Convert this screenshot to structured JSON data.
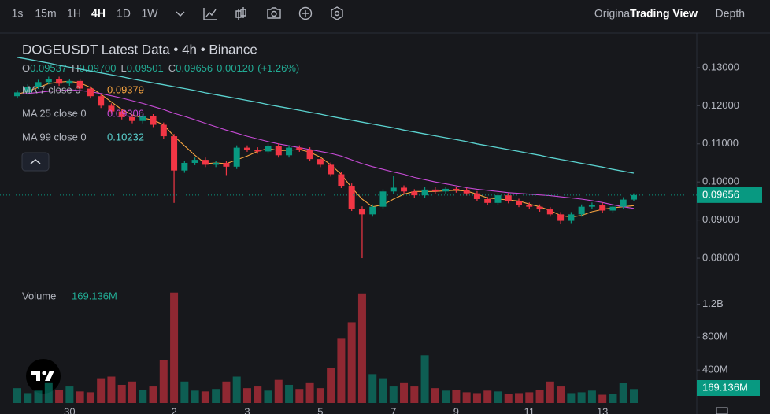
{
  "toolbar": {
    "intervals": [
      "1s",
      "15m",
      "1H",
      "4H",
      "1D",
      "1W"
    ],
    "active_interval": 3,
    "views": [
      "Original",
      "Trading View",
      "Depth"
    ],
    "active_view": 1
  },
  "legend": {
    "title": "DOGEUSDT Latest Data • 4h • Binance",
    "ohlc": [
      {
        "key": "O",
        "value": "0.09537"
      },
      {
        "key": "H",
        "value": "0.09700"
      },
      {
        "key": "L",
        "value": "0.09501"
      },
      {
        "key": "C",
        "value": "0.09656"
      }
    ],
    "change": "0.00120",
    "change_pct": "(+1.26%)",
    "volume_title": "Volume",
    "volume_value": "169.136M"
  },
  "chart_data": {
    "type": "candlestick",
    "up_color": "#089981",
    "down_color": "#f23645",
    "categories": [
      null,
      null,
      null,
      null,
      null,
      "30",
      null,
      null,
      null,
      null,
      null,
      null,
      null,
      null,
      null,
      "2",
      null,
      null,
      null,
      null,
      null,
      null,
      "3",
      null,
      null,
      null,
      null,
      null,
      null,
      "5",
      null,
      null,
      null,
      null,
      null,
      null,
      "7",
      null,
      null,
      null,
      null,
      null,
      "9",
      null,
      null,
      null,
      null,
      null,
      null,
      "11",
      null,
      null,
      null,
      null,
      null,
      null,
      "13",
      null,
      null,
      null
    ],
    "candles": {
      "open": [
        0.1225,
        0.1235,
        0.125,
        0.1262,
        0.127,
        0.1258,
        0.1265,
        0.1245,
        0.1225,
        0.12,
        0.1185,
        0.117,
        0.116,
        0.1172,
        0.115,
        0.112,
        0.103,
        0.105,
        0.1058,
        0.1045,
        0.105,
        0.104,
        0.109,
        0.1085,
        0.108,
        0.1095,
        0.107,
        0.109,
        0.1085,
        0.106,
        0.1045,
        0.102,
        0.099,
        0.093,
        0.0915,
        0.0935,
        0.0975,
        0.0985,
        0.0975,
        0.0965,
        0.098,
        0.0975,
        0.0982,
        0.0978,
        0.097,
        0.0955,
        0.0945,
        0.0965,
        0.095,
        0.094,
        0.0935,
        0.0928,
        0.0915,
        0.0898,
        0.0915,
        0.0935,
        0.094,
        0.0925,
        0.0935,
        0.09537
      ],
      "high": [
        0.1241,
        0.1256,
        0.1268,
        0.1276,
        0.1276,
        0.1271,
        0.1271,
        0.1251,
        0.1231,
        0.1206,
        0.1191,
        0.1176,
        0.1178,
        0.1178,
        0.1156,
        0.1126,
        0.1056,
        0.1064,
        0.1064,
        0.1056,
        0.1056,
        0.1096,
        0.1096,
        0.1091,
        0.1101,
        0.1101,
        0.1096,
        0.1096,
        0.1091,
        0.1066,
        0.1051,
        0.1026,
        0.0996,
        0.0936,
        0.0941,
        0.0981,
        0.1015,
        0.0991,
        0.0981,
        0.0986,
        0.0986,
        0.0988,
        0.0988,
        0.0984,
        0.0976,
        0.0961,
        0.0971,
        0.0971,
        0.0956,
        0.0946,
        0.0941,
        0.0934,
        0.0921,
        0.0921,
        0.0941,
        0.0946,
        0.0946,
        0.0941,
        0.096,
        0.097
      ],
      "low": [
        0.1219,
        0.1229,
        0.1244,
        0.1256,
        0.1252,
        0.1252,
        0.1239,
        0.1219,
        0.1194,
        0.1179,
        0.1164,
        0.1154,
        0.1154,
        0.1144,
        0.1114,
        0.0945,
        0.1024,
        0.1044,
        0.1039,
        0.1039,
        0.1018,
        0.1034,
        0.1079,
        0.1074,
        0.1074,
        0.1064,
        0.1064,
        0.1079,
        0.1054,
        0.1039,
        0.1014,
        0.0984,
        0.0924,
        0.08,
        0.0909,
        0.0929,
        0.0969,
        0.0969,
        0.0959,
        0.0959,
        0.0969,
        0.0969,
        0.0972,
        0.0964,
        0.0949,
        0.0939,
        0.0939,
        0.0944,
        0.0934,
        0.0929,
        0.0922,
        0.0909,
        0.0889,
        0.0892,
        0.0909,
        0.0929,
        0.0919,
        0.0919,
        0.0929,
        0.09501
      ],
      "close": [
        0.1235,
        0.125,
        0.1262,
        0.127,
        0.1258,
        0.1265,
        0.1245,
        0.1225,
        0.12,
        0.1185,
        0.117,
        0.116,
        0.1172,
        0.115,
        0.112,
        0.103,
        0.105,
        0.1058,
        0.1045,
        0.105,
        0.104,
        0.109,
        0.1085,
        0.108,
        0.1095,
        0.107,
        0.109,
        0.1085,
        0.106,
        0.1045,
        0.102,
        0.099,
        0.093,
        0.0915,
        0.0935,
        0.0975,
        0.0985,
        0.0975,
        0.0965,
        0.098,
        0.0975,
        0.0982,
        0.0978,
        0.097,
        0.0955,
        0.0945,
        0.0965,
        0.095,
        0.094,
        0.0935,
        0.0928,
        0.0915,
        0.0898,
        0.0915,
        0.0935,
        0.094,
        0.0925,
        0.0935,
        0.09537,
        0.09656
      ]
    },
    "ma": [
      {
        "name": "MA 7 close 0",
        "color": "#f7a440",
        "values": [
          0.123,
          0.1238,
          0.1248,
          0.1258,
          0.1262,
          0.1264,
          0.126,
          0.1248,
          0.123,
          0.121,
          0.119,
          0.1176,
          0.1168,
          0.1162,
          0.115,
          0.112,
          0.1095,
          0.107,
          0.1048,
          0.105,
          0.1048,
          0.1058,
          0.1068,
          0.108,
          0.1088,
          0.1082,
          0.1083,
          0.1085,
          0.1078,
          0.1065,
          0.1045,
          0.102,
          0.0985,
          0.0955,
          0.0935,
          0.094,
          0.0955,
          0.0968,
          0.0975,
          0.0975,
          0.0975,
          0.0977,
          0.0978,
          0.0976,
          0.0968,
          0.0958,
          0.0955,
          0.0953,
          0.095,
          0.0942,
          0.0935,
          0.0925,
          0.0912,
          0.0908,
          0.0912,
          0.0922,
          0.0928,
          0.0932,
          0.0935,
          0.09379
        ]
      },
      {
        "name": "MA 25 close 0",
        "color": "#c74bd6",
        "values": [
          0.123,
          0.1232,
          0.1235,
          0.1238,
          0.124,
          0.1242,
          0.124,
          0.1237,
          0.1232,
          0.1226,
          0.122,
          0.1213,
          0.1206,
          0.1198,
          0.119,
          0.118,
          0.1172,
          0.1163,
          0.1154,
          0.1145,
          0.1136,
          0.1128,
          0.112,
          0.1113,
          0.1106,
          0.11,
          0.1095,
          0.109,
          0.1085,
          0.108,
          0.1075,
          0.1068,
          0.1058,
          0.1048,
          0.104,
          0.1033,
          0.1026,
          0.102,
          0.1012,
          0.1006,
          0.1,
          0.0995,
          0.099,
          0.0985,
          0.0981,
          0.0978,
          0.0975,
          0.0972,
          0.097,
          0.0968,
          0.0966,
          0.0964,
          0.0961,
          0.0958,
          0.0955,
          0.0951,
          0.0946,
          0.094,
          0.0935,
          0.09306
        ]
      },
      {
        "name": "MA 99 close 0",
        "color": "#5ad2cf",
        "values": [
          0.1327,
          0.1322,
          0.1317,
          0.1312,
          0.1306,
          0.1301,
          0.1296,
          0.1291,
          0.1286,
          0.1281,
          0.1276,
          0.127,
          0.1265,
          0.126,
          0.1255,
          0.125,
          0.1245,
          0.124,
          0.1234,
          0.1229,
          0.1224,
          0.1219,
          0.1214,
          0.1209,
          0.1203,
          0.1198,
          0.1193,
          0.1188,
          0.1183,
          0.1178,
          0.1172,
          0.1167,
          0.1162,
          0.1157,
          0.1152,
          0.1147,
          0.1142,
          0.1136,
          0.1131,
          0.1126,
          0.1121,
          0.1116,
          0.1111,
          0.1106,
          0.11,
          0.1095,
          0.109,
          0.1085,
          0.108,
          0.1075,
          0.107,
          0.1064,
          0.1059,
          0.1054,
          0.1049,
          0.1044,
          0.1039,
          0.1033,
          0.1028,
          0.10232
        ]
      }
    ],
    "ylim": [
      0.0765,
      0.137
    ],
    "yticks": [
      {
        "value": 0.13,
        "label": "0.13000"
      },
      {
        "value": 0.12,
        "label": "0.12000"
      },
      {
        "value": 0.11,
        "label": "0.11000"
      },
      {
        "value": 0.1,
        "label": "0.10000"
      },
      {
        "value": 0.09,
        "label": "0.09000"
      },
      {
        "value": 0.08,
        "label": "0.08000"
      }
    ],
    "volume": {
      "values": [
        180000000,
        120000000,
        150000000,
        250000000,
        160000000,
        200000000,
        140000000,
        130000000,
        300000000,
        320000000,
        220000000,
        260000000,
        160000000,
        200000000,
        520000000,
        1340000000,
        260000000,
        150000000,
        140000000,
        170000000,
        260000000,
        320000000,
        180000000,
        200000000,
        150000000,
        280000000,
        220000000,
        170000000,
        250000000,
        180000000,
        430000000,
        780000000,
        980000000,
        1330000000,
        350000000,
        300000000,
        200000000,
        250000000,
        200000000,
        580000000,
        180000000,
        150000000,
        160000000,
        130000000,
        120000000,
        150000000,
        140000000,
        110000000,
        120000000,
        130000000,
        160000000,
        260000000,
        200000000,
        120000000,
        130000000,
        150000000,
        100000000,
        110000000,
        240000000,
        169136000
      ],
      "ylim": [
        0,
        1500000000
      ],
      "yticks": [
        {
          "value": 400000000,
          "label": "400M"
        },
        {
          "value": 800000000,
          "label": "800M"
        },
        {
          "value": 1200000000,
          "label": "1.2B"
        }
      ]
    }
  }
}
